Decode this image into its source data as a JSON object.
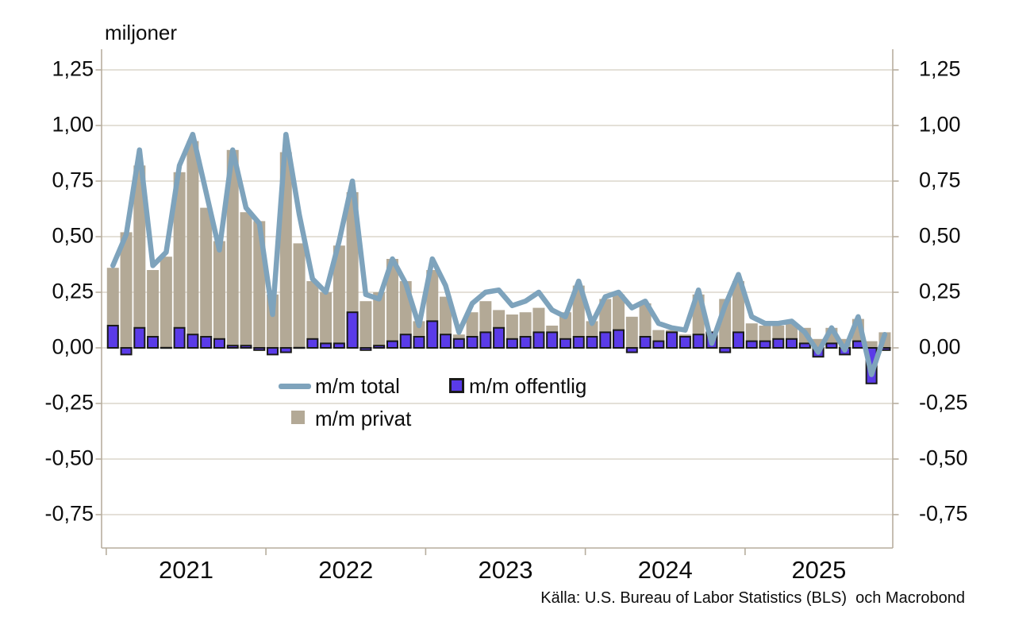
{
  "title": "miljoner",
  "source": "Källa: U.S. Bureau of Labor Statistics (BLS)  och Macrobond",
  "legend": {
    "total": "m/m total",
    "offentlig": "m/m offentlig",
    "privat": "m/m privat"
  },
  "colors": {
    "total_line": "#7ea3bc",
    "offentlig_fill": "#5a3be8",
    "offentlig_border": "#1a1a1a",
    "privat_fill": "#b3a996",
    "grid": "#dbd6cb",
    "axis": "#b7ae9e",
    "text": "#0d0d0d",
    "background": "#ffffff"
  },
  "y_axis": {
    "tick_labels": [
      "1,25",
      "1,00",
      "0,75",
      "0,50",
      "0,25",
      "0,00",
      "-0,25",
      "-0,50",
      "-0,75"
    ],
    "tick_values": [
      1.25,
      1.0,
      0.75,
      0.5,
      0.25,
      0.0,
      -0.25,
      -0.5,
      -0.75
    ],
    "shown_on": "both sides"
  },
  "x_axis": {
    "year_labels": [
      "2021",
      "2022",
      "2023",
      "2024",
      "2025"
    ]
  },
  "chart_data": {
    "type": "bar",
    "subtype": "monthly bars with overlaid line (combo chart)",
    "title": "miljoner",
    "xlabel": "",
    "ylabel": "miljoner",
    "ylim": [
      -0.75,
      1.25
    ],
    "grid": "horizontal only",
    "legend_position": "inside lower-center",
    "start_month": "2021-01",
    "end_month": "2025-11",
    "months_count": 59,
    "series": [
      {
        "name": "m/m total",
        "type": "line",
        "color": "#7ea3bc",
        "values": [
          0.37,
          0.51,
          0.89,
          0.37,
          0.43,
          0.82,
          0.96,
          0.7,
          0.44,
          0.89,
          0.63,
          0.56,
          0.15,
          0.96,
          0.6,
          0.31,
          0.25,
          0.48,
          0.75,
          0.24,
          0.22,
          0.4,
          0.29,
          0.1,
          0.4,
          0.28,
          0.07,
          0.2,
          0.25,
          0.26,
          0.19,
          0.21,
          0.25,
          0.17,
          0.14,
          0.3,
          0.11,
          0.23,
          0.25,
          0.18,
          0.21,
          0.11,
          0.09,
          0.08,
          0.26,
          0.02,
          0.19,
          0.33,
          0.14,
          0.11,
          0.11,
          0.12,
          0.07,
          -0.02,
          0.09,
          -0.01,
          0.14,
          -0.12,
          0.06
        ]
      },
      {
        "name": "m/m offentlig",
        "type": "bar",
        "color": "#5a3be8",
        "values": [
          0.1,
          -0.03,
          0.09,
          0.05,
          0.0,
          0.09,
          0.06,
          0.05,
          0.04,
          0.01,
          0.01,
          -0.01,
          -0.03,
          -0.02,
          0.0,
          0.04,
          0.02,
          0.02,
          0.16,
          -0.01,
          0.01,
          0.03,
          0.06,
          0.05,
          0.12,
          0.06,
          0.04,
          0.05,
          0.07,
          0.09,
          0.04,
          0.05,
          0.07,
          0.07,
          0.04,
          0.05,
          0.05,
          0.07,
          0.08,
          -0.02,
          0.05,
          0.03,
          0.07,
          0.05,
          0.06,
          0.07,
          -0.02,
          0.07,
          0.03,
          0.03,
          0.04,
          0.04,
          0.02,
          -0.04,
          0.02,
          -0.03,
          0.03,
          -0.16,
          -0.01
        ]
      },
      {
        "name": "m/m privat",
        "type": "bar",
        "color": "#b3a996",
        "values": [
          0.36,
          0.52,
          0.82,
          0.35,
          0.41,
          0.79,
          0.93,
          0.63,
          0.48,
          0.89,
          0.61,
          0.57,
          0.24,
          0.88,
          0.47,
          0.3,
          0.25,
          0.46,
          0.7,
          0.21,
          0.25,
          0.4,
          0.3,
          0.12,
          0.35,
          0.23,
          0.06,
          0.16,
          0.21,
          0.17,
          0.15,
          0.16,
          0.18,
          0.1,
          0.16,
          0.28,
          0.12,
          0.22,
          0.24,
          0.14,
          0.2,
          0.08,
          0.08,
          0.06,
          0.24,
          0.04,
          0.22,
          0.3,
          0.11,
          0.1,
          0.1,
          0.11,
          0.09,
          0.04,
          0.09,
          0.04,
          0.13,
          0.03,
          0.07
        ]
      }
    ]
  }
}
